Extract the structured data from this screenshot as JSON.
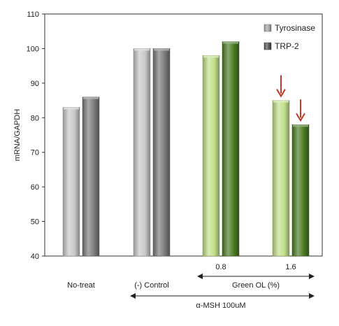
{
  "chart_data": {
    "type": "bar",
    "ylabel": "mRNA/GAPDH",
    "ylim": [
      40,
      110
    ],
    "yticks": [
      40,
      50,
      60,
      70,
      80,
      90,
      100,
      110
    ],
    "grid": false,
    "legend_position": "top-right",
    "series": [
      {
        "name": "Tyrosinase",
        "values": [
          83,
          100,
          98,
          85
        ]
      },
      {
        "name": "TRP-2",
        "values": [
          86,
          100,
          102,
          78
        ]
      }
    ],
    "groups": [
      {
        "label": "No-treat",
        "dose": "",
        "colors": [
          "#c8c8c8",
          "#7a7a7a"
        ]
      },
      {
        "label": "(-) Control",
        "dose": "",
        "colors": [
          "#c8c8c8",
          "#7a7a7a"
        ]
      },
      {
        "label": "",
        "dose": "0.8",
        "colors": [
          "#c2e08a",
          "#4a7a22"
        ]
      },
      {
        "label": "",
        "dose": "1.6",
        "colors": [
          "#c2e08a",
          "#4a7a22"
        ],
        "arrows": true
      }
    ],
    "legend_colors": [
      "#a8a8a8",
      "#555555"
    ],
    "arrow_color": "#c0392b",
    "annotations": {
      "green_ol": "Green OL (%)",
      "msh": "α-MSH 100uM"
    }
  }
}
